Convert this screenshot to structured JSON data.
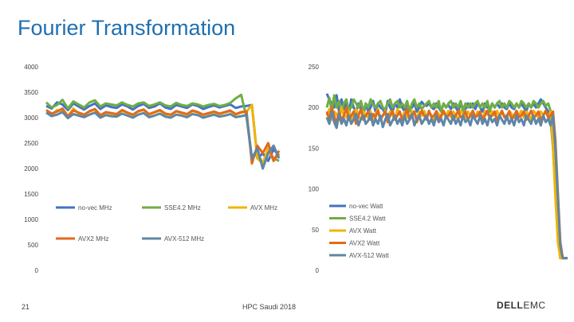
{
  "slide": {
    "title": "Fourier Transformation",
    "number": "21",
    "event": "HPC Saudi 2018",
    "logo_text": "DELLEMC"
  },
  "colors": {
    "no-vec": "#4472c4",
    "SSE4.2": "#70ad47",
    "AVX": "#f0b400",
    "AVX2": "#e06a1f",
    "AVX-512": "#5f86a6"
  },
  "chart_data": [
    {
      "type": "line",
      "title": "",
      "xlabel": "",
      "ylabel": "",
      "ylim": [
        0,
        4000
      ],
      "yticks": [
        "4000",
        "3500",
        "3000",
        "2500",
        "2000",
        "1500",
        "1000",
        "500",
        "0"
      ],
      "x": [
        1,
        2,
        3,
        4,
        5,
        6,
        7,
        8,
        9,
        10,
        11,
        12,
        13,
        14,
        15,
        16,
        17,
        18,
        19,
        20,
        21,
        22,
        23,
        24,
        25,
        26,
        27,
        28,
        29,
        30,
        31,
        32,
        33,
        34,
        35,
        36,
        37,
        38,
        39,
        40,
        41,
        42,
        43,
        44
      ],
      "legend_position": "bottom-inside",
      "series": [
        {
          "name": "no-vec MHz",
          "color_key": "no-vec",
          "values": [
            3230,
            3180,
            3300,
            3260,
            3150,
            3280,
            3220,
            3160,
            3230,
            3280,
            3170,
            3240,
            3210,
            3190,
            3260,
            3220,
            3160,
            3230,
            3270,
            3190,
            3220,
            3280,
            3200,
            3170,
            3250,
            3220,
            3190,
            3260,
            3230,
            3170,
            3210,
            3240,
            3200,
            3230,
            3260,
            3190,
            3220,
            3230,
            3250,
            2200,
            2300,
            2150,
            2380,
            2250
          ]
        },
        {
          "name": "SSE4.2 MHz",
          "color_key": "SSE4.2",
          "values": [
            3300,
            3200,
            3250,
            3350,
            3180,
            3320,
            3260,
            3200,
            3300,
            3340,
            3220,
            3280,
            3260,
            3240,
            3300,
            3250,
            3220,
            3280,
            3300,
            3230,
            3260,
            3300,
            3240,
            3220,
            3290,
            3250,
            3230,
            3280,
            3260,
            3220,
            3250,
            3270,
            3230,
            3250,
            3290,
            3380,
            3450,
            3000,
            2200,
            2300,
            2100,
            2350,
            2200,
            2150
          ]
        },
        {
          "name": "AVX MHz",
          "color_key": "AVX",
          "values": [
            3100,
            3050,
            3150,
            3120,
            3020,
            3180,
            3080,
            3050,
            3120,
            3160,
            3040,
            3100,
            3080,
            3060,
            3140,
            3090,
            3050,
            3120,
            3150,
            3060,
            3100,
            3140,
            3070,
            3050,
            3120,
            3090,
            3060,
            3130,
            3100,
            3050,
            3080,
            3110,
            3070,
            3100,
            3130,
            3060,
            3100,
            3120,
            3250,
            2200,
            2100,
            2400,
            2150,
            2300
          ]
        },
        {
          "name": "AVX2 MHz",
          "color_key": "AVX2",
          "values": [
            3150,
            3080,
            3120,
            3180,
            3030,
            3140,
            3100,
            3060,
            3130,
            3170,
            3050,
            3110,
            3090,
            3070,
            3150,
            3100,
            3060,
            3130,
            3160,
            3070,
            3110,
            3150,
            3080,
            3060,
            3130,
            3100,
            3070,
            3140,
            3110,
            3060,
            3090,
            3120,
            3080,
            3110,
            3140,
            3070,
            3110,
            3120,
            2100,
            2450,
            2300,
            2500,
            2150,
            2350
          ]
        },
        {
          "name": "AVX-512 MHz",
          "color_key": "AVX-512",
          "values": [
            3100,
            3030,
            3060,
            3110,
            2990,
            3070,
            3040,
            3010,
            3060,
            3100,
            3000,
            3050,
            3030,
            3020,
            3080,
            3040,
            3000,
            3060,
            3090,
            3010,
            3040,
            3080,
            3020,
            3000,
            3060,
            3040,
            3010,
            3070,
            3050,
            3000,
            3030,
            3060,
            3020,
            3040,
            3070,
            3010,
            3030,
            3050,
            2200,
            2400,
            2000,
            2300,
            2450,
            2200
          ]
        }
      ]
    },
    {
      "type": "line",
      "title": "",
      "xlabel": "",
      "ylabel": "",
      "ylim": [
        0,
        250
      ],
      "yticks": [
        "250",
        "200",
        "150",
        "100",
        "50",
        "0"
      ],
      "x": [
        1,
        2,
        3,
        4,
        5,
        6,
        7,
        8,
        9,
        10,
        11,
        12,
        13,
        14,
        15,
        16,
        17,
        18,
        19,
        20,
        21,
        22,
        23,
        24,
        25,
        26,
        27,
        28,
        29,
        30,
        31,
        32,
        33,
        34,
        35,
        36,
        37,
        38,
        39,
        40,
        41,
        42,
        43,
        44,
        45,
        46,
        47,
        48,
        49,
        50,
        51,
        52,
        53,
        54,
        55,
        56,
        57,
        58,
        59,
        60,
        61,
        62,
        63,
        64,
        65,
        66,
        67,
        68,
        69,
        70,
        71,
        72,
        73,
        74,
        75,
        76,
        77,
        78,
        79,
        80,
        81,
        82,
        83,
        84,
        85,
        86,
        87,
        88,
        89,
        90,
        91,
        92,
        93,
        94,
        95,
        96,
        97,
        98,
        99,
        100
      ],
      "legend_position": "right",
      "series": [
        {
          "name": "no-vec Watt",
          "color_key": "no-vec",
          "values": [
            217,
            210,
            205,
            200,
            215,
            195,
            210,
            198,
            205,
            190,
            210,
            200,
            195,
            205,
            198,
            190,
            205,
            195,
            200,
            208,
            195,
            205,
            200,
            198,
            192,
            208,
            200,
            195,
            205,
            200,
            210,
            200,
            195,
            205,
            198,
            200,
            205,
            195,
            200,
            207,
            203,
            202,
            205,
            200,
            198,
            205,
            200,
            195,
            205,
            200,
            203,
            198,
            205,
            200,
            195,
            205,
            200,
            198,
            205,
            200,
            205,
            198,
            205,
            200,
            195,
            205,
            200,
            198,
            205,
            200,
            205,
            200,
            205,
            200,
            198,
            205,
            200,
            198,
            205,
            200,
            205,
            200,
            195,
            205,
            200,
            205,
            200,
            205,
            210,
            205,
            200,
            195,
            186,
            150,
            100,
            45,
            15,
            15,
            15,
            15
          ]
        },
        {
          "name": "SSE4.2 Watt",
          "color_key": "SSE4.2",
          "values": [
            200,
            212,
            195,
            215,
            200,
            208,
            195,
            205,
            210,
            198,
            200,
            210,
            205,
            200,
            208,
            195,
            205,
            200,
            210,
            203,
            200,
            205,
            208,
            200,
            198,
            205,
            210,
            200,
            205,
            208,
            200,
            205,
            200,
            208,
            195,
            205,
            210,
            200,
            205,
            198,
            202,
            205,
            208,
            200,
            205,
            200,
            208,
            195,
            205,
            200,
            205,
            208,
            200,
            205,
            200,
            208,
            195,
            205,
            200,
            205,
            200,
            205,
            208,
            200,
            205,
            200,
            208,
            195,
            205,
            200,
            205,
            208,
            200,
            205,
            200,
            208,
            205,
            200,
            205,
            200,
            208,
            205,
            200,
            205,
            200,
            208,
            205,
            200,
            205,
            208,
            202,
            205,
            196,
            165,
            110,
            50,
            15,
            15,
            15,
            15
          ]
        },
        {
          "name": "AVX Watt",
          "color_key": "AVX",
          "values": [
            190,
            198,
            185,
            195,
            192,
            185,
            200,
            190,
            188,
            196,
            185,
            192,
            198,
            190,
            185,
            195,
            190,
            188,
            195,
            185,
            192,
            198,
            185,
            190,
            196,
            188,
            195,
            190,
            185,
            198,
            192,
            188,
            195,
            190,
            185,
            196,
            192,
            188,
            195,
            190,
            196,
            188,
            195,
            190,
            185,
            196,
            192,
            188,
            195,
            190,
            196,
            188,
            195,
            190,
            185,
            196,
            192,
            188,
            195,
            190,
            196,
            188,
            195,
            190,
            185,
            196,
            192,
            188,
            195,
            190,
            196,
            188,
            195,
            190,
            185,
            196,
            192,
            188,
            195,
            190,
            196,
            188,
            195,
            190,
            185,
            196,
            192,
            188,
            195,
            190,
            196,
            188,
            195,
            150,
            90,
            35,
            15,
            15,
            15,
            15
          ]
        },
        {
          "name": "AVX2 Watt",
          "color_key": "AVX2",
          "values": [
            195,
            185,
            200,
            190,
            180,
            195,
            185,
            190,
            200,
            185,
            190,
            195,
            180,
            190,
            198,
            185,
            190,
            195,
            185,
            192,
            188,
            196,
            185,
            190,
            195,
            182,
            190,
            196,
            185,
            190,
            195,
            185,
            190,
            198,
            185,
            190,
            195,
            182,
            190,
            196,
            190,
            185,
            196,
            188,
            190,
            195,
            185,
            190,
            196,
            188,
            190,
            195,
            185,
            190,
            196,
            188,
            190,
            195,
            185,
            190,
            196,
            188,
            190,
            195,
            185,
            190,
            196,
            188,
            190,
            195,
            185,
            190,
            196,
            188,
            190,
            195,
            185,
            190,
            196,
            188,
            190,
            195,
            185,
            190,
            196,
            188,
            190,
            195,
            185,
            190,
            196,
            188,
            190,
            195,
            160,
            95,
            35,
            15,
            15,
            15
          ]
        },
        {
          "name": "AVX-512 Watt",
          "color_key": "AVX-512",
          "values": [
            188,
            180,
            195,
            182,
            175,
            192,
            180,
            186,
            178,
            190,
            180,
            185,
            192,
            178,
            186,
            190,
            180,
            184,
            192,
            178,
            186,
            180,
            190,
            176,
            185,
            192,
            178,
            184,
            190,
            180,
            186,
            178,
            190,
            180,
            185,
            192,
            178,
            186,
            190,
            180,
            185,
            190,
            180,
            186,
            178,
            190,
            182,
            186,
            178,
            190,
            185,
            180,
            190,
            180,
            186,
            178,
            190,
            182,
            186,
            178,
            190,
            185,
            180,
            190,
            180,
            186,
            178,
            190,
            182,
            186,
            178,
            190,
            185,
            180,
            190,
            180,
            186,
            178,
            190,
            182,
            186,
            178,
            190,
            185,
            180,
            190,
            180,
            186,
            178,
            190,
            182,
            186,
            178,
            190,
            150,
            90,
            30,
            15,
            15,
            15
          ]
        }
      ]
    }
  ]
}
